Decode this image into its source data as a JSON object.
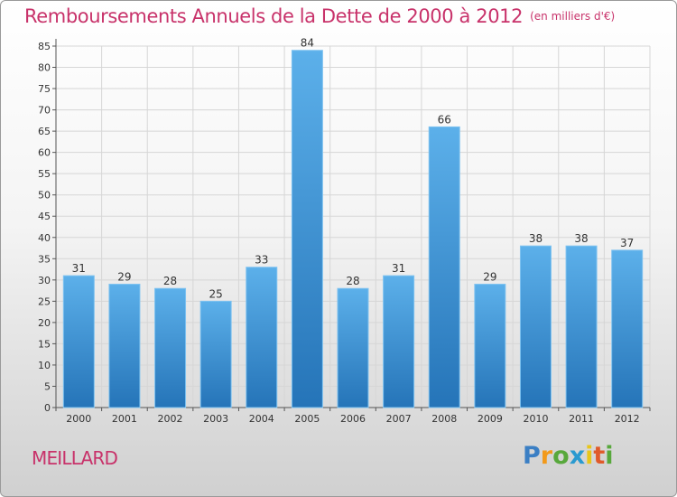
{
  "title": "Remboursements Annuels de la Dette de 2000 à 2012",
  "unit": "(en milliers d'€)",
  "commune": "MEILLARD",
  "logo": {
    "text": "Proxiti",
    "letters": [
      {
        "char": "P",
        "color": "#3b7fc4"
      },
      {
        "char": "r",
        "color": "#f29a1b"
      },
      {
        "char": "o",
        "color": "#58a83c"
      },
      {
        "char": "x",
        "color": "#2a9ad0"
      },
      {
        "char": "i",
        "color": "#e8c61a"
      },
      {
        "char": "t",
        "color": "#e05a2a"
      },
      {
        "char": "i",
        "color": "#58a83c"
      }
    ]
  },
  "chart_data": {
    "type": "bar",
    "title": "Remboursements Annuels de la Dette de 2000 à 2012",
    "subtitle": "(en milliers d'€)",
    "xlabel": "",
    "ylabel": "",
    "categories": [
      "2000",
      "2001",
      "2002",
      "2003",
      "2004",
      "2005",
      "2006",
      "2007",
      "2008",
      "2009",
      "2010",
      "2011",
      "2012"
    ],
    "values": [
      31,
      29,
      28,
      25,
      33,
      84,
      28,
      31,
      66,
      29,
      38,
      38,
      37
    ],
    "ylim": [
      0,
      85
    ],
    "yticks": [
      0,
      5,
      10,
      15,
      20,
      25,
      30,
      35,
      40,
      45,
      50,
      55,
      60,
      65,
      70,
      75,
      80,
      85
    ],
    "grid": true,
    "bar_color": "#3f98dc",
    "legend": "none"
  }
}
